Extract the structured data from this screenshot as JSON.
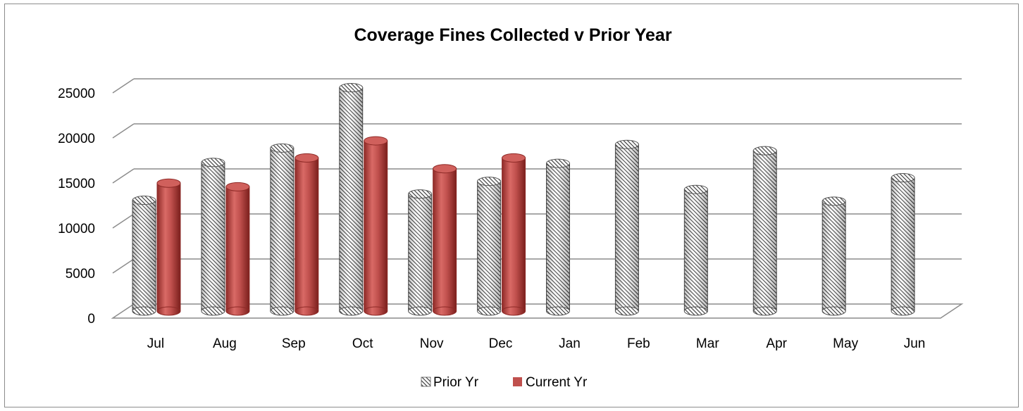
{
  "chart_data": {
    "type": "bar",
    "title": "Coverage Fines Collected v Prior Year",
    "xlabel": "",
    "ylabel": "",
    "categories": [
      "Jul",
      "Aug",
      "Sep",
      "Oct",
      "Nov",
      "Dec",
      "Jan",
      "Feb",
      "Mar",
      "Apr",
      "May",
      "Jun"
    ],
    "series": [
      {
        "name": "Prior Yr",
        "values": [
          12300,
          16500,
          18100,
          24800,
          13000,
          14400,
          16400,
          18500,
          13500,
          17800,
          12200,
          14800
        ]
      },
      {
        "name": "Current Yr",
        "values": [
          14200,
          13800,
          17000,
          18900,
          15800,
          17000,
          null,
          null,
          null,
          null,
          null,
          null
        ]
      }
    ],
    "ylim": [
      0,
      25000
    ],
    "yticks": [
      "0",
      "5000",
      "10000",
      "15000",
      "20000",
      "25000"
    ],
    "grid": true,
    "legend_position": "bottom",
    "colors": {
      "prior": "#4a4a4a",
      "current": "#c0504d"
    }
  }
}
